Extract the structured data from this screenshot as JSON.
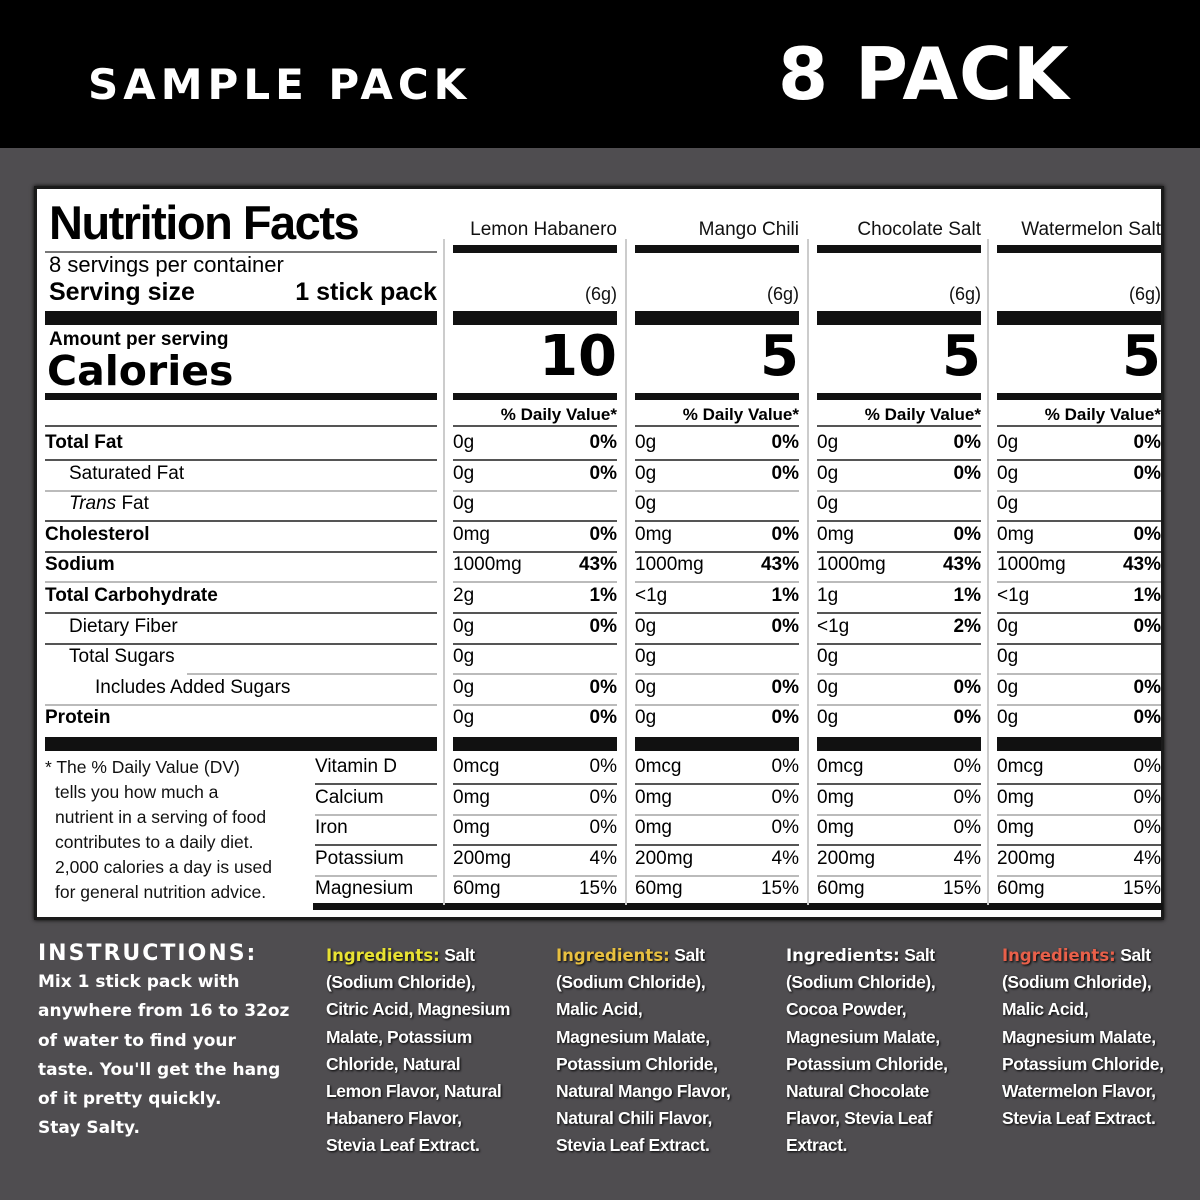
{
  "header": {
    "left_title": "SAMPLE PACK",
    "right_title": "8 PACK"
  },
  "nutrition": {
    "title": "Nutrition Facts",
    "servings_per_container": "8 servings per container",
    "serving_size_label": "Serving size",
    "serving_size_value": "1 stick pack",
    "amount_per_serving": "Amount per serving",
    "calories_label": "Calories",
    "daily_value_header": "% Daily Value*",
    "rows": [
      {
        "label": "Total Fat",
        "style": "bold"
      },
      {
        "label": "Saturated Fat",
        "style": "indent1"
      },
      {
        "label_italic": "Trans",
        "label": " Fat",
        "style": "indent1"
      },
      {
        "label": "Cholesterol",
        "style": "bold"
      },
      {
        "label": "Sodium",
        "style": "bold"
      },
      {
        "label": "Total Carbohydrate",
        "style": "bold"
      },
      {
        "label": "Dietary Fiber",
        "style": "indent1"
      },
      {
        "label": "Total Sugars",
        "style": "indent1"
      },
      {
        "label": "Includes Added Sugars",
        "style": "indent2"
      },
      {
        "label": "Protein",
        "style": "bold"
      }
    ],
    "vitamin_rows": [
      "Vitamin D",
      "Calcium",
      "Iron",
      "Potassium",
      "Magnesium"
    ],
    "footnote": "* The % Daily Value (DV) tells you how much a nutrient in a serving of food contributes to a daily diet. 2,000 calories a day is used for general nutrition advice.",
    "footnote_lines": [
      "* The % Daily Value (DV)",
      "tells you how much a",
      "nutrient in a serving of food",
      "contributes to a daily diet.",
      "2,000 calories a day is used",
      "for general nutrition advice."
    ],
    "flavors": [
      {
        "name": "Lemon Habanero",
        "weight": "(6g)",
        "calories": "10",
        "values": [
          {
            "amount": "0g",
            "dv": "0%"
          },
          {
            "amount": "0g",
            "dv": "0%"
          },
          {
            "amount": "0g",
            "dv": ""
          },
          {
            "amount": "0mg",
            "dv": "0%"
          },
          {
            "amount": "1000mg",
            "dv": "43%"
          },
          {
            "amount": "2g",
            "dv": "1%"
          },
          {
            "amount": "0g",
            "dv": "0%"
          },
          {
            "amount": "0g",
            "dv": ""
          },
          {
            "amount": "0g",
            "dv": "0%"
          },
          {
            "amount": "0g",
            "dv": "0%"
          }
        ],
        "vitamins": [
          {
            "amount": "0mcg",
            "dv": "0%"
          },
          {
            "amount": "0mg",
            "dv": "0%"
          },
          {
            "amount": "0mg",
            "dv": "0%"
          },
          {
            "amount": "200mg",
            "dv": "4%"
          },
          {
            "amount": "60mg",
            "dv": "15%"
          }
        ]
      },
      {
        "name": "Mango Chili",
        "weight": "(6g)",
        "calories": "5",
        "values": [
          {
            "amount": "0g",
            "dv": "0%"
          },
          {
            "amount": "0g",
            "dv": "0%"
          },
          {
            "amount": "0g",
            "dv": ""
          },
          {
            "amount": "0mg",
            "dv": "0%"
          },
          {
            "amount": "1000mg",
            "dv": "43%"
          },
          {
            "amount": "<1g",
            "dv": "1%"
          },
          {
            "amount": "0g",
            "dv": "0%"
          },
          {
            "amount": "0g",
            "dv": ""
          },
          {
            "amount": "0g",
            "dv": "0%"
          },
          {
            "amount": "0g",
            "dv": "0%"
          }
        ],
        "vitamins": [
          {
            "amount": "0mcg",
            "dv": "0%"
          },
          {
            "amount": "0mg",
            "dv": "0%"
          },
          {
            "amount": "0mg",
            "dv": "0%"
          },
          {
            "amount": "200mg",
            "dv": "4%"
          },
          {
            "amount": "60mg",
            "dv": "15%"
          }
        ]
      },
      {
        "name": "Chocolate Salt",
        "weight": "(6g)",
        "calories": "5",
        "values": [
          {
            "amount": "0g",
            "dv": "0%"
          },
          {
            "amount": "0g",
            "dv": "0%"
          },
          {
            "amount": "0g",
            "dv": ""
          },
          {
            "amount": "0mg",
            "dv": "0%"
          },
          {
            "amount": "1000mg",
            "dv": "43%"
          },
          {
            "amount": "1g",
            "dv": "1%"
          },
          {
            "amount": "<1g",
            "dv": "2%"
          },
          {
            "amount": "0g",
            "dv": ""
          },
          {
            "amount": "0g",
            "dv": "0%"
          },
          {
            "amount": "0g",
            "dv": "0%"
          }
        ],
        "vitamins": [
          {
            "amount": "0mcg",
            "dv": "0%"
          },
          {
            "amount": "0mg",
            "dv": "0%"
          },
          {
            "amount": "0mg",
            "dv": "0%"
          },
          {
            "amount": "200mg",
            "dv": "4%"
          },
          {
            "amount": "60mg",
            "dv": "15%"
          }
        ]
      },
      {
        "name": "Watermelon Salt",
        "weight": "(6g)",
        "calories": "5",
        "values": [
          {
            "amount": "0g",
            "dv": "0%"
          },
          {
            "amount": "0g",
            "dv": "0%"
          },
          {
            "amount": "0g",
            "dv": ""
          },
          {
            "amount": "0mg",
            "dv": "0%"
          },
          {
            "amount": "1000mg",
            "dv": "43%"
          },
          {
            "amount": "<1g",
            "dv": "1%"
          },
          {
            "amount": "0g",
            "dv": "0%"
          },
          {
            "amount": "0g",
            "dv": ""
          },
          {
            "amount": "0g",
            "dv": "0%"
          },
          {
            "amount": "0g",
            "dv": "0%"
          }
        ],
        "vitamins": [
          {
            "amount": "0mcg",
            "dv": "0%"
          },
          {
            "amount": "0mg",
            "dv": "0%"
          },
          {
            "amount": "0mg",
            "dv": "0%"
          },
          {
            "amount": "200mg",
            "dv": "4%"
          },
          {
            "amount": "60mg",
            "dv": "15%"
          }
        ]
      }
    ]
  },
  "instructions": {
    "title": "INSTRUCTIONS:",
    "lines": [
      "Mix 1 stick pack with",
      "anywhere from 16 to 32oz",
      "of water to find your",
      "taste. You'll get the hang",
      "of it pretty quickly.",
      "Stay Salty."
    ]
  },
  "ingredients": [
    {
      "label": "Ingredients:",
      "label_color": "#e8e233",
      "first": " Salt",
      "lines": [
        "(Sodium Chloride),",
        "Citric Acid, Magnesium",
        "Malate, Potassium",
        "Chloride, Natural",
        "Lemon Flavor, Natural",
        "Habanero Flavor,",
        "Stevia Leaf Extract."
      ]
    },
    {
      "label": "Ingredients:",
      "label_color": "#e8c040",
      "first": " Salt",
      "lines": [
        "(Sodium Chloride),",
        "Malic Acid,",
        "Magnesium Malate,",
        "Potassium Chloride,",
        "Natural Mango Flavor,",
        "Natural Chili Flavor,",
        "Stevia Leaf Extract."
      ]
    },
    {
      "label": "Ingredients:",
      "label_color": "#ffffff",
      "first": " Salt",
      "lines": [
        "(Sodium Chloride),",
        "Cocoa Powder,",
        "Magnesium Malate,",
        "Potassium Chloride,",
        "Natural Chocolate",
        "Flavor, Stevia Leaf",
        "Extract."
      ]
    },
    {
      "label": "Ingredients:",
      "label_color": "#e8604a",
      "first": " Salt",
      "lines": [
        "(Sodium Chloride),",
        "Malic Acid,",
        "Magnesium Malate,",
        "Potassium Chloride,",
        "Watermelon Flavor,",
        "Stevia Leaf Extract."
      ]
    }
  ],
  "colors": {
    "header_bg": "#000000",
    "page_bg": "#4f4d50",
    "label_bg": "#ffffff",
    "lemon_accent": "#e8e233",
    "mango_accent": "#e8c040",
    "chocolate_accent": "#ffffff",
    "watermelon_accent": "#e8604a"
  }
}
